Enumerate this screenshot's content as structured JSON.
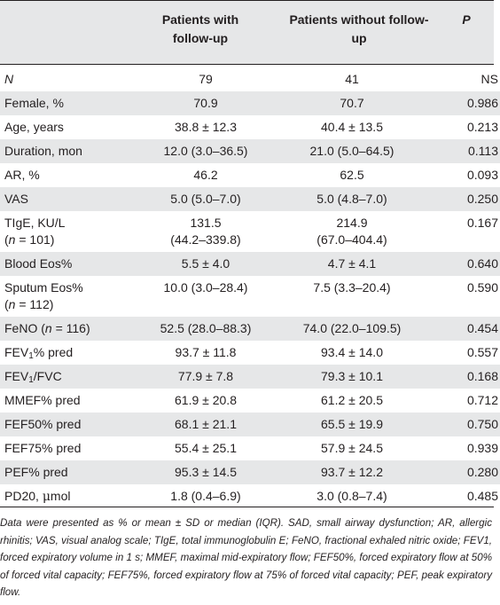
{
  "header": {
    "col_with": "Patients with follow-up",
    "col_without": "Patients without follow-up",
    "col_p": "P"
  },
  "rows": [
    {
      "label": "N",
      "with": "79",
      "without": "41",
      "p": "NS"
    },
    {
      "label": "Female, %",
      "with": "70.9",
      "without": "70.7",
      "p": "0.986"
    },
    {
      "label": "Age, years",
      "with": "38.8 ± 12.3",
      "without": "40.4 ± 13.5",
      "p": "0.213"
    },
    {
      "label": "Duration, mon",
      "with": "12.0 (3.0–36.5)",
      "without": "21.0 (5.0–64.5)",
      "p": "0.113"
    },
    {
      "label": "AR, %",
      "with": "46.2",
      "without": "62.5",
      "p": "0.093"
    },
    {
      "label": "VAS",
      "with": "5.0 (5.0–7.0)",
      "without": "5.0 (4.8–7.0)",
      "p": "0.250"
    },
    {
      "label_line1": "TIgE, KU/L",
      "label_line2_var": "n",
      "label_line2_rest": " = 101)",
      "with_line1": "131.5",
      "with_line2": "(44.2–339.8)",
      "without_line1": "214.9",
      "without_line2": "(67.0–404.4)",
      "p": "0.167"
    },
    {
      "label": "Blood Eos%",
      "with": "5.5 ± 4.0",
      "without": "4.7 ± 4.1",
      "p": "0.640"
    },
    {
      "label_line1": "Sputum Eos%",
      "label_line2_var": "n",
      "label_line2_rest": " = 112)",
      "with": "10.0 (3.0–28.4)",
      "without": "7.5 (3.3–20.4)",
      "p": "0.590"
    },
    {
      "label_pre": "FeNO (",
      "label_var": "n",
      "label_post": " = 116)",
      "with": "52.5 (28.0–88.3)",
      "without": "74.0 (22.0–109.5)",
      "p": "0.454"
    },
    {
      "label_pre": "FEV",
      "label_sub": "1",
      "label_post": "% pred",
      "with": "93.7 ± 11.8",
      "without": "93.4 ± 14.0",
      "p": "0.557"
    },
    {
      "label_pre": "FEV",
      "label_sub": "1",
      "label_post": "/FVC",
      "with": "77.9 ± 7.8",
      "without": "79.3 ± 10.1",
      "p": "0.168"
    },
    {
      "label": "MMEF% pred",
      "with": "61.9 ± 20.8",
      "without": "61.2 ± 20.5",
      "p": "0.712"
    },
    {
      "label": "FEF50% pred",
      "with": "68.1 ± 21.1",
      "without": "65.5 ± 19.9",
      "p": "0.750"
    },
    {
      "label": "FEF75% pred",
      "with": "55.4 ± 25.1",
      "without": "57.9 ± 24.5",
      "p": "0.939"
    },
    {
      "label": "PEF% pred",
      "with": "95.3 ± 14.5",
      "without": "93.7 ± 12.2",
      "p": "0.280"
    },
    {
      "label_pre": "PD20, ",
      "label_mu": "μ",
      "label_post": "mol",
      "with": "1.8 (0.4–6.9)",
      "without": "3.0 (0.8–7.4)",
      "p": "0.485"
    }
  ],
  "footnote": "Data were presented as % or mean ± SD or median (IQR). SAD, small airway dysfunction; AR, allergic rhinitis; VAS, visual analog scale; TIgE, total immunoglobulin E; FeNO, fractional exhaled nitric oxide; FEV1, forced expiratory volume in 1 s; MMEF, maximal mid-expiratory flow; FEF50%, forced expiratory flow at 50% of forced vital capacity; FEF75%, forced expiratory flow at 75% of forced vital capacity; PEF, peak expiratory flow."
}
